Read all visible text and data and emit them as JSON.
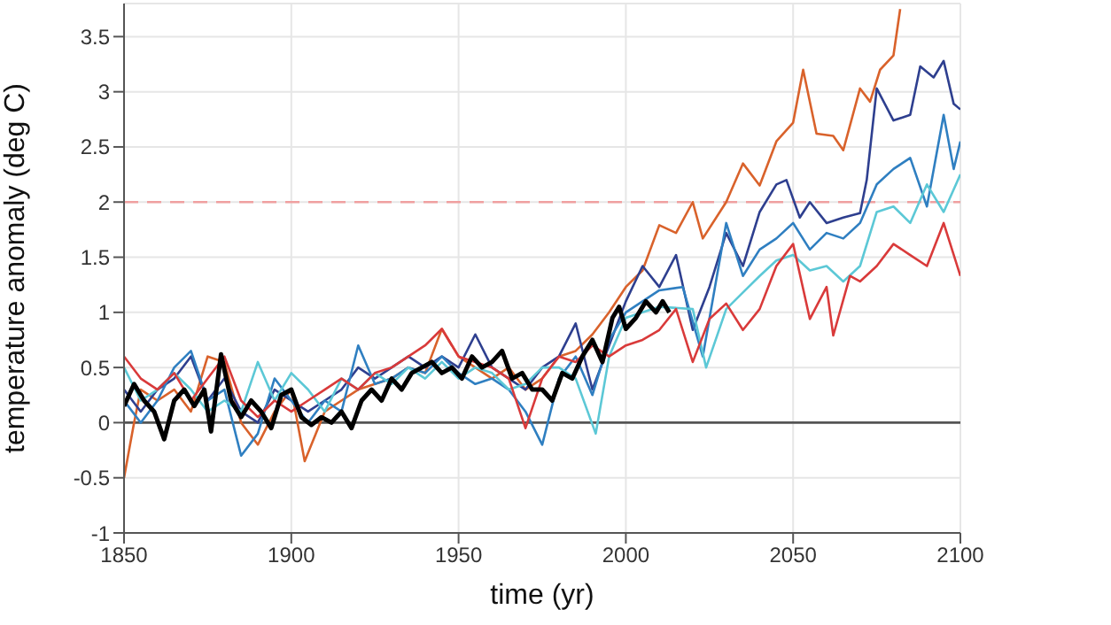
{
  "chart_data": {
    "type": "line",
    "xlabel": "time (yr)",
    "ylabel": "temperature anomaly (deg C)",
    "xlim": [
      1850,
      2100
    ],
    "xticks": [
      1850,
      1900,
      1950,
      2000,
      2050,
      2100
    ],
    "ylim": [
      -1,
      3.8
    ],
    "yticks": [
      -1,
      -0.5,
      0,
      0.5,
      1,
      1.5,
      2,
      2.5,
      3,
      3.5
    ],
    "grid": true,
    "ref_lines": [
      {
        "axis": "y",
        "value": 2,
        "color": "#f0a0a0",
        "line_style": "dashed"
      },
      {
        "axis": "y",
        "value": 0,
        "color": "#555555",
        "line_style": "solid"
      }
    ],
    "series": [
      {
        "color": "#d9622b",
        "x": [
          1850,
          1853,
          1855,
          1860,
          1865,
          1870,
          1875,
          1880,
          1885,
          1890,
          1895,
          1900,
          1904,
          1910,
          1915,
          1920,
          1925,
          1930,
          1935,
          1940,
          1945,
          1950,
          1955,
          1960,
          1965,
          1970,
          1975,
          1980,
          1985,
          1990,
          1995,
          2000,
          2005,
          2010,
          2015,
          2020,
          2023,
          2030,
          2035,
          2040,
          2045,
          2050,
          2053,
          2057,
          2062,
          2065,
          2070,
          2073,
          2076,
          2080,
          2082
        ],
        "values": [
          -0.5,
          0.0,
          0.3,
          0.2,
          0.3,
          0.1,
          0.6,
          0.55,
          0.0,
          -0.2,
          0.1,
          0.3,
          -0.35,
          0.1,
          0.2,
          0.3,
          0.35,
          0.4,
          0.5,
          0.45,
          0.85,
          0.6,
          0.5,
          0.4,
          0.5,
          0.3,
          0.4,
          0.6,
          0.65,
          0.8,
          1.0,
          1.23,
          1.38,
          1.79,
          1.72,
          2.0,
          1.67,
          2.0,
          2.35,
          2.15,
          2.55,
          2.72,
          3.2,
          2.62,
          2.6,
          2.47,
          3.03,
          2.91,
          3.2,
          3.33,
          3.75
        ]
      },
      {
        "color": "#2e3f8f",
        "x": [
          1850,
          1855,
          1860,
          1865,
          1870,
          1875,
          1880,
          1885,
          1890,
          1895,
          1900,
          1905,
          1910,
          1915,
          1920,
          1925,
          1930,
          1935,
          1940,
          1945,
          1950,
          1955,
          1960,
          1965,
          1970,
          1975,
          1980,
          1985,
          1990,
          1995,
          2000,
          2005,
          2010,
          2015,
          2020,
          2025,
          2030,
          2035,
          2040,
          2045,
          2048,
          2052,
          2055,
          2060,
          2065,
          2070,
          2072,
          2075,
          2080,
          2085,
          2088,
          2092,
          2095,
          2098,
          2100
        ],
        "values": [
          0.3,
          0.1,
          0.3,
          0.4,
          0.6,
          0.2,
          0.4,
          0.1,
          0.0,
          0.3,
          0.2,
          0.1,
          0.2,
          0.3,
          0.5,
          0.4,
          0.5,
          0.6,
          0.5,
          0.6,
          0.5,
          0.8,
          0.5,
          0.4,
          0.3,
          0.5,
          0.6,
          0.9,
          0.3,
          0.7,
          1.1,
          1.42,
          1.23,
          1.52,
          0.84,
          1.23,
          1.72,
          1.42,
          1.91,
          2.16,
          2.2,
          1.86,
          2.0,
          1.81,
          1.86,
          1.9,
          2.2,
          3.03,
          2.74,
          2.79,
          3.23,
          3.13,
          3.28,
          2.89,
          2.84
        ]
      },
      {
        "color": "#2f7fc1",
        "x": [
          1850,
          1855,
          1860,
          1865,
          1870,
          1875,
          1880,
          1885,
          1890,
          1895,
          1900,
          1905,
          1910,
          1915,
          1920,
          1925,
          1930,
          1935,
          1940,
          1945,
          1950,
          1955,
          1960,
          1965,
          1970,
          1975,
          1980,
          1985,
          1990,
          1995,
          2000,
          2010,
          2017,
          2023,
          2030,
          2035,
          2040,
          2045,
          2050,
          2055,
          2060,
          2065,
          2070,
          2075,
          2080,
          2085,
          2090,
          2095,
          2098,
          2100
        ],
        "values": [
          0.2,
          0.0,
          0.2,
          0.5,
          0.65,
          0.2,
          0.3,
          -0.3,
          -0.1,
          0.4,
          0.2,
          0.0,
          0.2,
          0.1,
          0.7,
          0.35,
          0.4,
          0.5,
          0.45,
          0.6,
          0.45,
          0.35,
          0.4,
          0.3,
          0.1,
          -0.2,
          0.4,
          0.6,
          0.25,
          0.75,
          1.0,
          1.2,
          1.23,
          0.6,
          1.81,
          1.33,
          1.57,
          1.67,
          1.81,
          1.57,
          1.72,
          1.67,
          1.81,
          2.16,
          2.3,
          2.4,
          1.96,
          2.79,
          2.3,
          2.55
        ]
      },
      {
        "color": "#5cc8d6",
        "x": [
          1850,
          1855,
          1860,
          1865,
          1870,
          1875,
          1880,
          1885,
          1890,
          1895,
          1900,
          1905,
          1910,
          1915,
          1920,
          1925,
          1930,
          1935,
          1940,
          1945,
          1950,
          1955,
          1960,
          1965,
          1970,
          1975,
          1980,
          1985,
          1991,
          1995,
          2000,
          2010,
          2020,
          2024,
          2030,
          2035,
          2040,
          2045,
          2050,
          2055,
          2060,
          2065,
          2070,
          2075,
          2080,
          2085,
          2090,
          2095,
          2100
        ],
        "values": [
          0.5,
          0.2,
          0.3,
          0.45,
          0.3,
          0.1,
          0.2,
          0.1,
          0.55,
          0.2,
          0.45,
          0.3,
          0.1,
          0.4,
          0.3,
          0.45,
          0.35,
          0.5,
          0.4,
          0.55,
          0.4,
          0.5,
          0.45,
          0.3,
          0.35,
          0.5,
          0.5,
          0.4,
          -0.1,
          0.6,
          0.95,
          1.05,
          1.03,
          0.5,
          1.03,
          1.18,
          1.33,
          1.47,
          1.52,
          1.38,
          1.42,
          1.28,
          1.42,
          1.91,
          1.96,
          1.81,
          2.16,
          1.91,
          2.25
        ]
      },
      {
        "color": "#d93a3a",
        "x": [
          1850,
          1855,
          1860,
          1865,
          1870,
          1875,
          1880,
          1885,
          1890,
          1895,
          1900,
          1905,
          1910,
          1915,
          1920,
          1925,
          1930,
          1935,
          1940,
          1945,
          1950,
          1955,
          1960,
          1965,
          1970,
          1975,
          1980,
          1985,
          1990,
          1995,
          2000,
          2005,
          2010,
          2015,
          2020,
          2025,
          2030,
          2035,
          2040,
          2045,
          2050,
          2055,
          2060,
          2062,
          2067,
          2070,
          2075,
          2080,
          2085,
          2090,
          2095,
          2100
        ],
        "values": [
          0.6,
          0.4,
          0.3,
          0.45,
          0.2,
          0.4,
          0.6,
          0.2,
          0.05,
          0.2,
          0.1,
          0.2,
          0.3,
          0.4,
          0.3,
          0.45,
          0.5,
          0.6,
          0.7,
          0.85,
          0.6,
          0.55,
          0.5,
          0.4,
          -0.05,
          0.4,
          0.6,
          0.55,
          0.7,
          0.6,
          0.7,
          0.75,
          0.84,
          1.03,
          0.55,
          0.94,
          1.08,
          0.84,
          1.03,
          1.42,
          1.62,
          0.94,
          1.23,
          0.79,
          1.33,
          1.28,
          1.42,
          1.62,
          1.52,
          1.42,
          1.81,
          1.33
        ]
      },
      {
        "color": "#000000",
        "x": [
          1850,
          1853,
          1856,
          1859,
          1862,
          1865,
          1868,
          1871,
          1874,
          1876,
          1879,
          1882,
          1885,
          1888,
          1891,
          1894,
          1897,
          1900,
          1903,
          1906,
          1909,
          1912,
          1915,
          1918,
          1921,
          1924,
          1927,
          1930,
          1933,
          1936,
          1939,
          1942,
          1945,
          1948,
          1951,
          1954,
          1957,
          1960,
          1963,
          1966,
          1969,
          1972,
          1975,
          1978,
          1981,
          1984,
          1987,
          1990,
          1993,
          1996,
          1998,
          2000,
          2003,
          2006,
          2009,
          2011,
          2013
        ],
        "values": [
          0.15,
          0.35,
          0.2,
          0.1,
          -0.15,
          0.2,
          0.3,
          0.15,
          0.3,
          -0.08,
          0.62,
          0.2,
          0.05,
          0.2,
          0.1,
          -0.05,
          0.25,
          0.3,
          0.05,
          -0.02,
          0.05,
          0.0,
          0.1,
          -0.05,
          0.2,
          0.3,
          0.2,
          0.4,
          0.3,
          0.45,
          0.5,
          0.55,
          0.45,
          0.5,
          0.4,
          0.6,
          0.5,
          0.55,
          0.65,
          0.4,
          0.45,
          0.3,
          0.3,
          0.2,
          0.45,
          0.4,
          0.6,
          0.75,
          0.55,
          0.95,
          1.05,
          0.85,
          0.95,
          1.1,
          1.0,
          1.1,
          1.0
        ]
      }
    ]
  }
}
